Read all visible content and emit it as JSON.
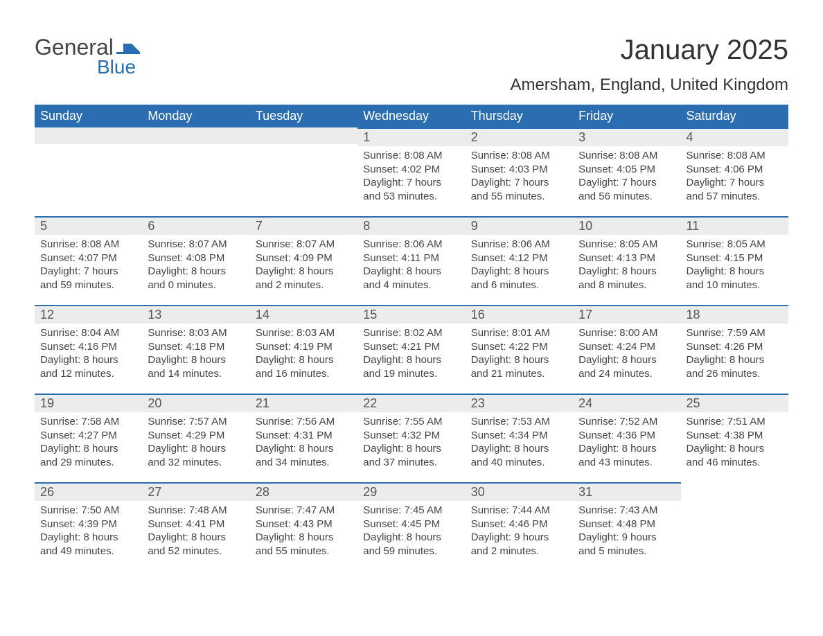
{
  "logo": {
    "word1": "General",
    "word2": "Blue"
  },
  "title": "January 2025",
  "location": "Amersham, England, United Kingdom",
  "colors": {
    "header_bg": "#2a6db0",
    "daynum_bg": "#ececec",
    "border": "#2a6db0",
    "text": "#333333"
  },
  "weekdays": [
    "Sunday",
    "Monday",
    "Tuesday",
    "Wednesday",
    "Thursday",
    "Friday",
    "Saturday"
  ],
  "weeks": [
    [
      null,
      null,
      null,
      {
        "n": "1",
        "sr": "Sunrise: 8:08 AM",
        "ss": "Sunset: 4:02 PM",
        "d1": "Daylight: 7 hours",
        "d2": "and 53 minutes."
      },
      {
        "n": "2",
        "sr": "Sunrise: 8:08 AM",
        "ss": "Sunset: 4:03 PM",
        "d1": "Daylight: 7 hours",
        "d2": "and 55 minutes."
      },
      {
        "n": "3",
        "sr": "Sunrise: 8:08 AM",
        "ss": "Sunset: 4:05 PM",
        "d1": "Daylight: 7 hours",
        "d2": "and 56 minutes."
      },
      {
        "n": "4",
        "sr": "Sunrise: 8:08 AM",
        "ss": "Sunset: 4:06 PM",
        "d1": "Daylight: 7 hours",
        "d2": "and 57 minutes."
      }
    ],
    [
      {
        "n": "5",
        "sr": "Sunrise: 8:08 AM",
        "ss": "Sunset: 4:07 PM",
        "d1": "Daylight: 7 hours",
        "d2": "and 59 minutes."
      },
      {
        "n": "6",
        "sr": "Sunrise: 8:07 AM",
        "ss": "Sunset: 4:08 PM",
        "d1": "Daylight: 8 hours",
        "d2": "and 0 minutes."
      },
      {
        "n": "7",
        "sr": "Sunrise: 8:07 AM",
        "ss": "Sunset: 4:09 PM",
        "d1": "Daylight: 8 hours",
        "d2": "and 2 minutes."
      },
      {
        "n": "8",
        "sr": "Sunrise: 8:06 AM",
        "ss": "Sunset: 4:11 PM",
        "d1": "Daylight: 8 hours",
        "d2": "and 4 minutes."
      },
      {
        "n": "9",
        "sr": "Sunrise: 8:06 AM",
        "ss": "Sunset: 4:12 PM",
        "d1": "Daylight: 8 hours",
        "d2": "and 6 minutes."
      },
      {
        "n": "10",
        "sr": "Sunrise: 8:05 AM",
        "ss": "Sunset: 4:13 PM",
        "d1": "Daylight: 8 hours",
        "d2": "and 8 minutes."
      },
      {
        "n": "11",
        "sr": "Sunrise: 8:05 AM",
        "ss": "Sunset: 4:15 PM",
        "d1": "Daylight: 8 hours",
        "d2": "and 10 minutes."
      }
    ],
    [
      {
        "n": "12",
        "sr": "Sunrise: 8:04 AM",
        "ss": "Sunset: 4:16 PM",
        "d1": "Daylight: 8 hours",
        "d2": "and 12 minutes."
      },
      {
        "n": "13",
        "sr": "Sunrise: 8:03 AM",
        "ss": "Sunset: 4:18 PM",
        "d1": "Daylight: 8 hours",
        "d2": "and 14 minutes."
      },
      {
        "n": "14",
        "sr": "Sunrise: 8:03 AM",
        "ss": "Sunset: 4:19 PM",
        "d1": "Daylight: 8 hours",
        "d2": "and 16 minutes."
      },
      {
        "n": "15",
        "sr": "Sunrise: 8:02 AM",
        "ss": "Sunset: 4:21 PM",
        "d1": "Daylight: 8 hours",
        "d2": "and 19 minutes."
      },
      {
        "n": "16",
        "sr": "Sunrise: 8:01 AM",
        "ss": "Sunset: 4:22 PM",
        "d1": "Daylight: 8 hours",
        "d2": "and 21 minutes."
      },
      {
        "n": "17",
        "sr": "Sunrise: 8:00 AM",
        "ss": "Sunset: 4:24 PM",
        "d1": "Daylight: 8 hours",
        "d2": "and 24 minutes."
      },
      {
        "n": "18",
        "sr": "Sunrise: 7:59 AM",
        "ss": "Sunset: 4:26 PM",
        "d1": "Daylight: 8 hours",
        "d2": "and 26 minutes."
      }
    ],
    [
      {
        "n": "19",
        "sr": "Sunrise: 7:58 AM",
        "ss": "Sunset: 4:27 PM",
        "d1": "Daylight: 8 hours",
        "d2": "and 29 minutes."
      },
      {
        "n": "20",
        "sr": "Sunrise: 7:57 AM",
        "ss": "Sunset: 4:29 PM",
        "d1": "Daylight: 8 hours",
        "d2": "and 32 minutes."
      },
      {
        "n": "21",
        "sr": "Sunrise: 7:56 AM",
        "ss": "Sunset: 4:31 PM",
        "d1": "Daylight: 8 hours",
        "d2": "and 34 minutes."
      },
      {
        "n": "22",
        "sr": "Sunrise: 7:55 AM",
        "ss": "Sunset: 4:32 PM",
        "d1": "Daylight: 8 hours",
        "d2": "and 37 minutes."
      },
      {
        "n": "23",
        "sr": "Sunrise: 7:53 AM",
        "ss": "Sunset: 4:34 PM",
        "d1": "Daylight: 8 hours",
        "d2": "and 40 minutes."
      },
      {
        "n": "24",
        "sr": "Sunrise: 7:52 AM",
        "ss": "Sunset: 4:36 PM",
        "d1": "Daylight: 8 hours",
        "d2": "and 43 minutes."
      },
      {
        "n": "25",
        "sr": "Sunrise: 7:51 AM",
        "ss": "Sunset: 4:38 PM",
        "d1": "Daylight: 8 hours",
        "d2": "and 46 minutes."
      }
    ],
    [
      {
        "n": "26",
        "sr": "Sunrise: 7:50 AM",
        "ss": "Sunset: 4:39 PM",
        "d1": "Daylight: 8 hours",
        "d2": "and 49 minutes."
      },
      {
        "n": "27",
        "sr": "Sunrise: 7:48 AM",
        "ss": "Sunset: 4:41 PM",
        "d1": "Daylight: 8 hours",
        "d2": "and 52 minutes."
      },
      {
        "n": "28",
        "sr": "Sunrise: 7:47 AM",
        "ss": "Sunset: 4:43 PM",
        "d1": "Daylight: 8 hours",
        "d2": "and 55 minutes."
      },
      {
        "n": "29",
        "sr": "Sunrise: 7:45 AM",
        "ss": "Sunset: 4:45 PM",
        "d1": "Daylight: 8 hours",
        "d2": "and 59 minutes."
      },
      {
        "n": "30",
        "sr": "Sunrise: 7:44 AM",
        "ss": "Sunset: 4:46 PM",
        "d1": "Daylight: 9 hours",
        "d2": "and 2 minutes."
      },
      {
        "n": "31",
        "sr": "Sunrise: 7:43 AM",
        "ss": "Sunset: 4:48 PM",
        "d1": "Daylight: 9 hours",
        "d2": "and 5 minutes."
      },
      null
    ]
  ]
}
